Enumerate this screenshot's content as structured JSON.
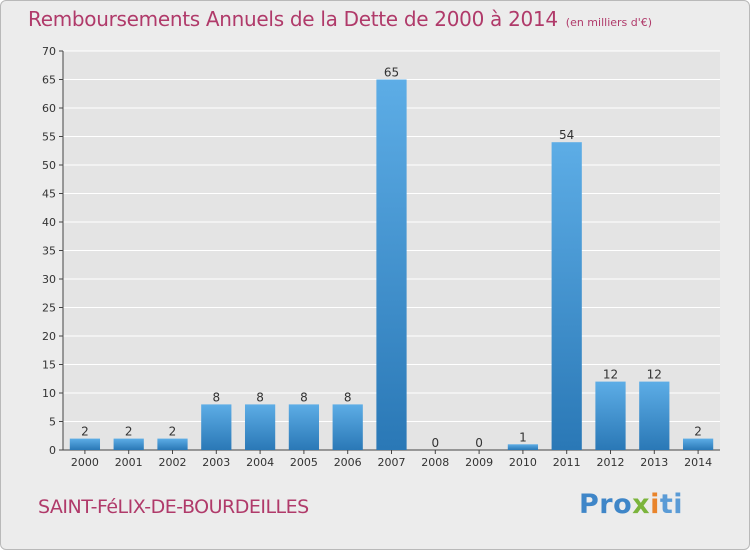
{
  "header": {
    "title": "Remboursements Annuels de la Dette de 2000 à 2014",
    "unit": "(en milliers d'€)"
  },
  "footer": {
    "commune": "SAINT-FéLIX-DE-BOURDEILLES",
    "logo_part1": "Pro",
    "logo_part2": "x",
    "logo_part3": "i",
    "logo_part4": "ti"
  },
  "colors": {
    "bar_top": "#5dade6",
    "bar_bottom": "#2a78b6",
    "title": "#b03a6a",
    "axis": "#444444",
    "grid": "#ffffff"
  },
  "chart_data": {
    "type": "bar",
    "title": "Remboursements Annuels de la Dette de 2000 à 2014",
    "ylabel": "",
    "xlabel": "",
    "ylim": [
      0,
      70
    ],
    "ytick_step": 5,
    "grid": true,
    "categories": [
      "2000",
      "2001",
      "2002",
      "2003",
      "2004",
      "2005",
      "2006",
      "2007",
      "2008",
      "2009",
      "2010",
      "2011",
      "2012",
      "2013",
      "2014"
    ],
    "values": [
      2,
      2,
      2,
      8,
      8,
      8,
      8,
      65,
      0,
      0,
      1,
      54,
      12,
      12,
      2
    ]
  }
}
